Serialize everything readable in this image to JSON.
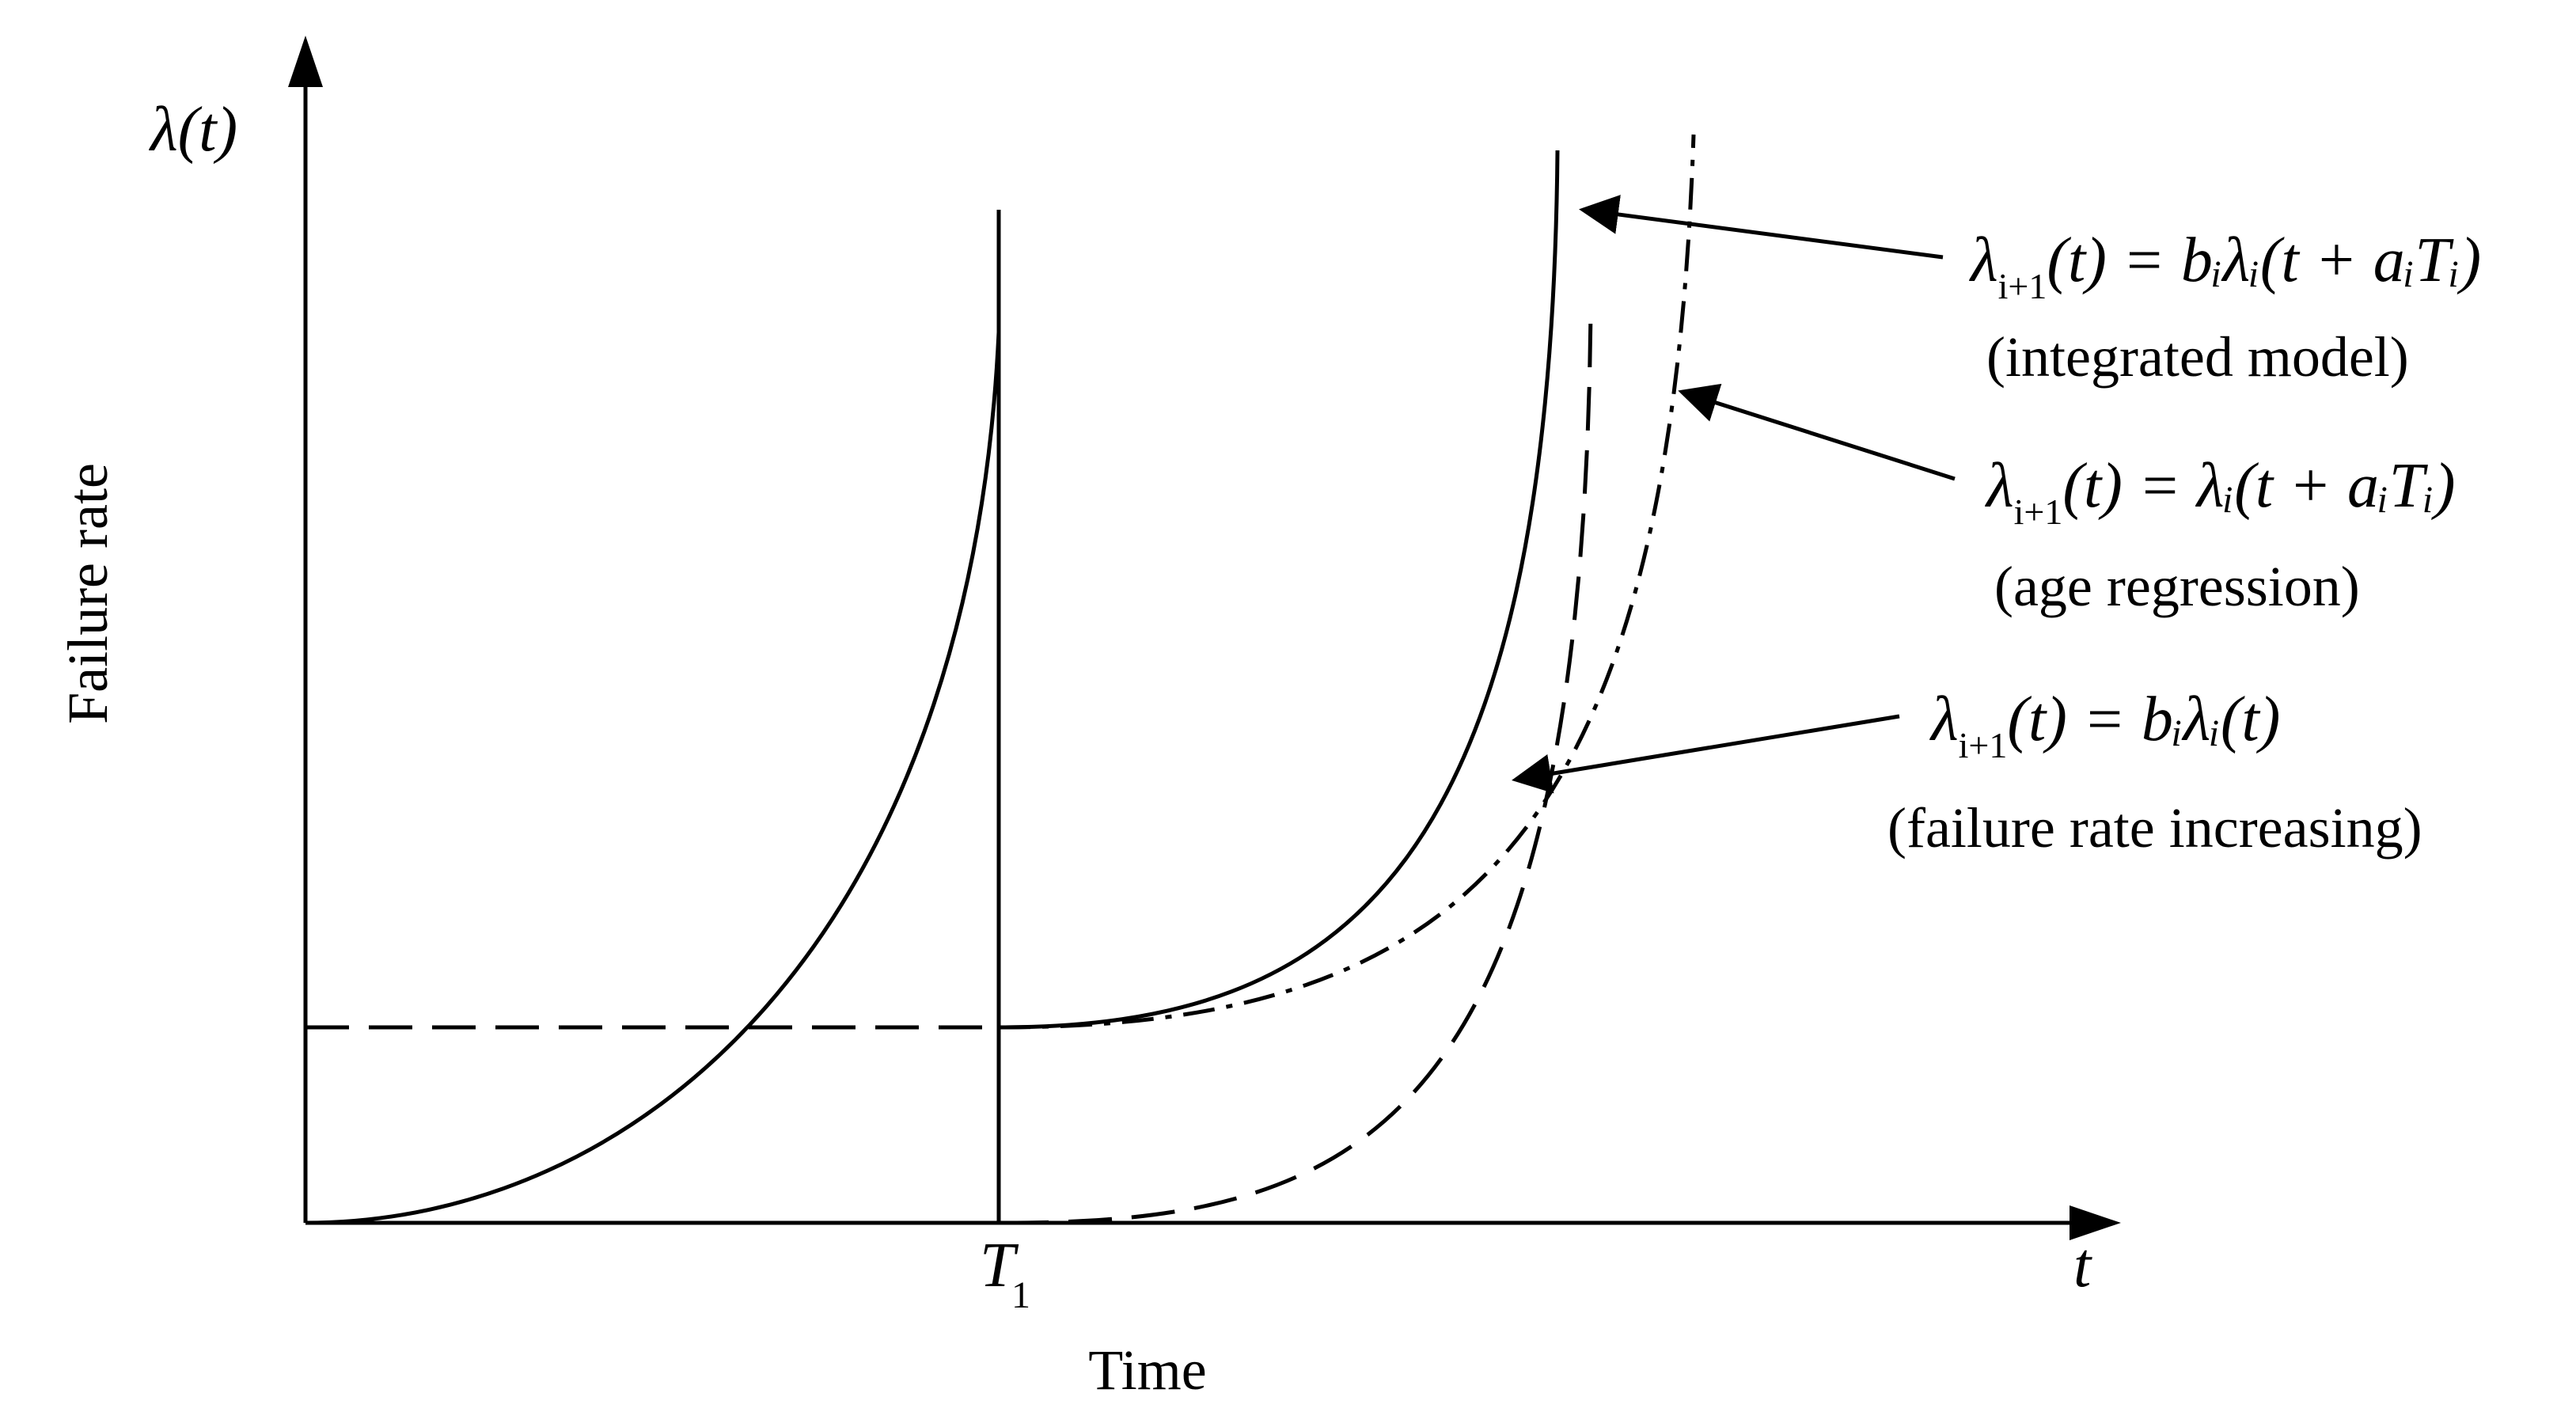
{
  "axes": {
    "y_symbol": "λ(t)",
    "y_label": "Failure rate",
    "x_symbol": "t",
    "x_label": "Time",
    "x_tick": {
      "main": "T",
      "sub": "1"
    }
  },
  "annotations": [
    {
      "id": "integrated",
      "formula_lhs_main": "λ",
      "formula_lhs_sub": "i+1",
      "formula_rhs": "(t) = bᵢλᵢ(t + aᵢTᵢ)",
      "caption": "(integrated model)"
    },
    {
      "id": "age-regression",
      "formula_lhs_main": "λ",
      "formula_lhs_sub": "i+1",
      "formula_rhs": "(t) = λᵢ(t + aᵢTᵢ)",
      "caption": "(age regression)"
    },
    {
      "id": "failure-rate-increasing",
      "formula_lhs_main": "λ",
      "formula_lhs_sub": "i+1",
      "formula_rhs": "(t) = bᵢλᵢ(t)",
      "caption": "(failure rate increasing)"
    }
  ],
  "curves": [
    {
      "name": "first-interval",
      "style": "solid"
    },
    {
      "name": "integrated-model",
      "style": "solid"
    },
    {
      "name": "age-regression",
      "style": "dash-dot"
    },
    {
      "name": "failure-rate-increasing",
      "style": "dashed"
    }
  ],
  "colors": {
    "ink": "#000000",
    "background": "#ffffff"
  }
}
